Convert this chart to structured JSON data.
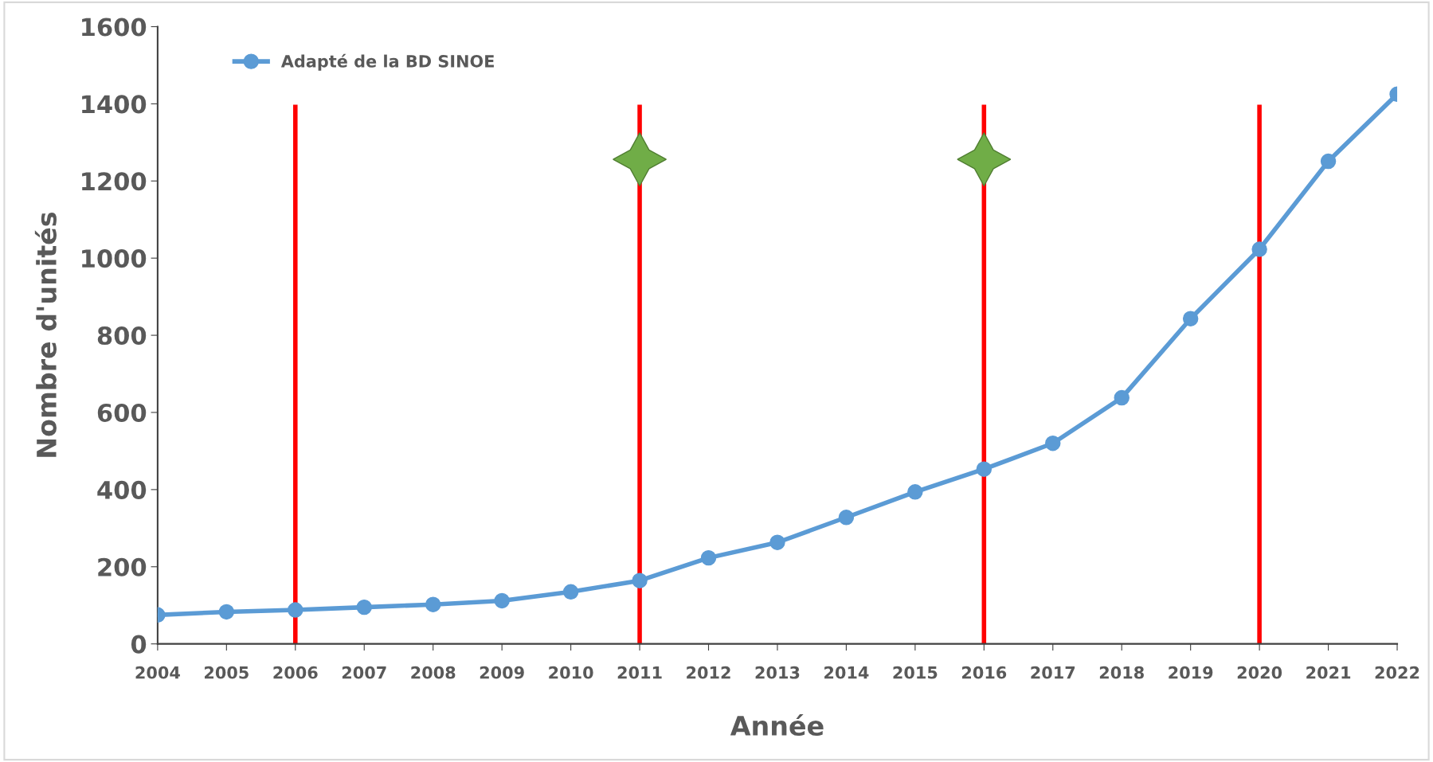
{
  "chart_data": {
    "type": "line",
    "xlabel": "Année",
    "ylabel": "Nombre d'unités",
    "x": [
      2004,
      2005,
      2006,
      2007,
      2008,
      2009,
      2010,
      2011,
      2012,
      2013,
      2014,
      2015,
      2016,
      2017,
      2018,
      2019,
      2020,
      2021,
      2022
    ],
    "series": [
      {
        "name": "Adapté de la BD SINOE",
        "color": "#5b9bd5",
        "values": [
          75,
          83,
          88,
          95,
          102,
          112,
          135,
          164,
          223,
          263,
          328,
          394,
          453,
          520,
          638,
          843,
          1023,
          1251,
          1425
        ]
      }
    ],
    "xlim": [
      2004,
      2022
    ],
    "xticks": [
      2004,
      2005,
      2006,
      2007,
      2008,
      2009,
      2010,
      2011,
      2012,
      2013,
      2014,
      2015,
      2016,
      2017,
      2018,
      2019,
      2020,
      2021,
      2022
    ],
    "ylim": [
      0,
      1600
    ],
    "yticks": [
      0,
      200,
      400,
      600,
      800,
      1000,
      1200,
      1400,
      1600
    ],
    "ref_lines": [
      {
        "axis": "x",
        "value": 2006,
        "color": "#ff0000"
      },
      {
        "axis": "x",
        "value": 2011,
        "color": "#ff0000"
      },
      {
        "axis": "x",
        "value": 2016,
        "color": "#ff0000"
      },
      {
        "axis": "x",
        "value": 2020,
        "color": "#ff0000"
      }
    ],
    "grid": false,
    "legend": "top left",
    "marker": "circle",
    "line_style": "solid"
  }
}
